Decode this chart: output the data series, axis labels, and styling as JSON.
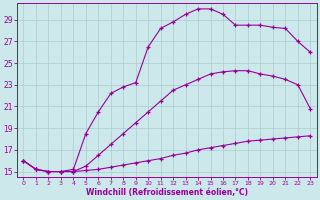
{
  "xlabel": "Windchill (Refroidissement éolien,°C)",
  "bg_color": "#cce8ea",
  "line_color": "#990099",
  "grid_color": "#aacccc",
  "xlim": [
    -0.5,
    23.5
  ],
  "ylim": [
    14.5,
    30.5
  ],
  "yticks": [
    15,
    17,
    19,
    21,
    23,
    25,
    27,
    29
  ],
  "xticks": [
    0,
    1,
    2,
    3,
    4,
    5,
    6,
    7,
    8,
    9,
    10,
    11,
    12,
    13,
    14,
    15,
    16,
    17,
    18,
    19,
    20,
    21,
    22,
    23
  ],
  "series1_x": [
    0,
    1,
    2,
    3,
    4,
    5,
    6,
    7,
    8,
    9,
    10,
    11,
    12,
    13,
    14,
    15,
    16,
    17,
    18,
    19,
    20,
    21,
    22,
    23
  ],
  "series1_y": [
    16.0,
    15.2,
    15.0,
    15.0,
    15.0,
    15.1,
    15.2,
    15.4,
    15.6,
    15.8,
    16.0,
    16.2,
    16.5,
    16.7,
    17.0,
    17.2,
    17.4,
    17.6,
    17.8,
    17.9,
    18.0,
    18.1,
    18.2,
    18.3
  ],
  "series2_x": [
    0,
    1,
    2,
    3,
    4,
    5,
    6,
    7,
    8,
    9,
    10,
    11,
    12,
    13,
    14,
    15,
    16,
    17,
    18,
    19,
    20,
    21,
    22,
    23
  ],
  "series2_y": [
    16.0,
    15.2,
    15.0,
    15.0,
    15.0,
    15.5,
    16.5,
    17.5,
    18.5,
    19.5,
    20.5,
    21.5,
    22.5,
    23.0,
    23.5,
    24.0,
    24.2,
    24.3,
    24.3,
    24.0,
    23.8,
    23.5,
    23.0,
    20.8
  ],
  "series3_x": [
    0,
    1,
    2,
    3,
    4,
    5,
    6,
    7,
    8,
    9,
    10,
    11,
    12,
    13,
    14,
    15,
    16,
    17,
    18,
    19,
    20,
    21,
    22,
    23
  ],
  "series3_y": [
    16.0,
    15.2,
    15.0,
    15.0,
    15.2,
    18.5,
    20.5,
    22.2,
    22.8,
    23.2,
    26.5,
    28.2,
    28.8,
    29.5,
    30.0,
    30.0,
    29.5,
    28.5,
    28.5,
    28.5,
    28.3,
    28.2,
    27.0,
    26.0
  ]
}
